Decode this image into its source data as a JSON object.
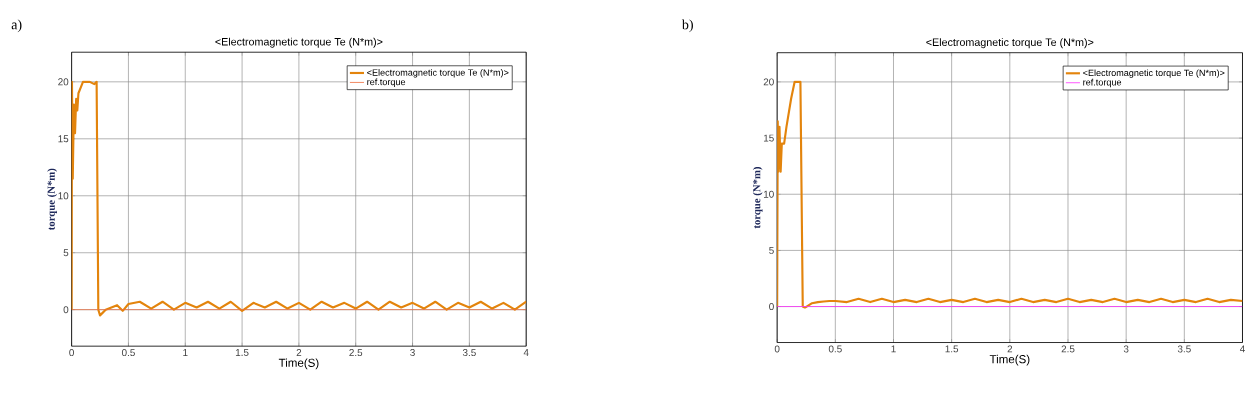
{
  "chart_data": [
    {
      "type": "line",
      "title": "<Electromagnetic torque Te (N*m)>",
      "xlabel": "Time(S)",
      "ylabel": "torque (N*m)",
      "annotations": [
        "a)"
      ],
      "xlim": [
        0,
        4
      ],
      "ylim": [
        -3.2,
        22.6
      ],
      "xticks": [
        0,
        0.5,
        1,
        1.5,
        2,
        2.5,
        3,
        3.5,
        4
      ],
      "yticks": [
        0,
        5,
        10,
        15,
        20
      ],
      "grid": true,
      "legend": "top right",
      "series": [
        {
          "name": "<Electromagnetic torque Te (N*m)>",
          "color": "#e3840c",
          "x": [
            0,
            0.003,
            0.01,
            0.02,
            0.03,
            0.04,
            0.05,
            0.06,
            0.08,
            0.1,
            0.13,
            0.16,
            0.2,
            0.22,
            0.235,
            0.25,
            0.27,
            0.3,
            0.35,
            0.4,
            0.45,
            0.5,
            0.6,
            0.7,
            0.8,
            0.9,
            1.0,
            1.1,
            1.2,
            1.3,
            1.4,
            1.5,
            1.6,
            1.7,
            1.8,
            1.9,
            2.0,
            2.1,
            2.2,
            2.3,
            2.4,
            2.5,
            2.6,
            2.7,
            2.8,
            2.9,
            3.0,
            3.1,
            3.2,
            3.3,
            3.4,
            3.5,
            3.6,
            3.7,
            3.8,
            3.9,
            4.0
          ],
          "values": [
            0,
            20,
            11.5,
            18,
            15.5,
            18.5,
            17.5,
            19,
            19.5,
            20,
            20,
            20,
            19.8,
            20,
            0,
            -0.5,
            -0.3,
            0,
            0.2,
            0.4,
            -0.1,
            0.5,
            0.7,
            0.1,
            0.7,
            0,
            0.6,
            0.2,
            0.7,
            0.1,
            0.7,
            -0.1,
            0.6,
            0.2,
            0.7,
            0.1,
            0.6,
            0,
            0.7,
            0.2,
            0.6,
            0.1,
            0.7,
            0,
            0.7,
            0.2,
            0.6,
            0.1,
            0.7,
            0,
            0.6,
            0.2,
            0.7,
            0.1,
            0.6,
            0,
            0.7
          ]
        },
        {
          "name": "ref.torque",
          "color": "#ee7040",
          "x": [
            0,
            4
          ],
          "values": [
            0,
            0
          ]
        }
      ]
    },
    {
      "type": "line",
      "title": "<Electromagnetic torque Te (N*m)>",
      "xlabel": "Time(S)",
      "ylabel": "torque (N*m)",
      "annotations": [
        "b)"
      ],
      "xlim": [
        0,
        4
      ],
      "ylim": [
        -3.2,
        22.6
      ],
      "xticks": [
        0,
        0.5,
        1,
        1.5,
        2,
        2.5,
        3,
        3.5,
        4
      ],
      "yticks": [
        0,
        5,
        10,
        15,
        20
      ],
      "grid": true,
      "legend": "top right",
      "series": [
        {
          "name": "<Electromagnetic torque Te (N*m)>",
          "color": "#e3840c",
          "x": [
            0,
            0.005,
            0.01,
            0.02,
            0.03,
            0.04,
            0.06,
            0.08,
            0.12,
            0.15,
            0.18,
            0.2,
            0.22,
            0.24,
            0.27,
            0.3,
            0.35,
            0.4,
            0.45,
            0.5,
            0.6,
            0.7,
            0.8,
            0.9,
            1.0,
            1.1,
            1.2,
            1.3,
            1.4,
            1.5,
            1.6,
            1.7,
            1.8,
            1.9,
            2.0,
            2.1,
            2.2,
            2.3,
            2.4,
            2.5,
            2.6,
            2.7,
            2.8,
            2.9,
            3.0,
            3.1,
            3.2,
            3.3,
            3.4,
            3.5,
            3.6,
            3.7,
            3.8,
            3.9,
            4.0
          ],
          "values": [
            0,
            16.5,
            12,
            16,
            12,
            14.5,
            14.5,
            16,
            18.5,
            20,
            20,
            20,
            0,
            -0.1,
            0.1,
            0.3,
            0.4,
            0.45,
            0.5,
            0.5,
            0.4,
            0.7,
            0.4,
            0.7,
            0.4,
            0.6,
            0.4,
            0.7,
            0.4,
            0.6,
            0.4,
            0.7,
            0.4,
            0.6,
            0.4,
            0.7,
            0.4,
            0.6,
            0.4,
            0.7,
            0.4,
            0.6,
            0.4,
            0.7,
            0.4,
            0.6,
            0.4,
            0.7,
            0.4,
            0.6,
            0.4,
            0.7,
            0.4,
            0.6,
            0.5
          ]
        },
        {
          "name": "ref.torque",
          "color": "#ff33ff",
          "x": [
            0,
            4
          ],
          "values": [
            0,
            0
          ]
        }
      ]
    }
  ]
}
